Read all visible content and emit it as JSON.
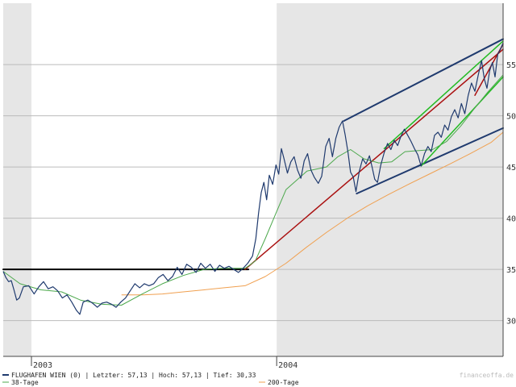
{
  "colors": {
    "price": "#1f3a6e",
    "ma38": "#4ca84c",
    "ma200": "#f0a050",
    "channel_dark": "#1f3a6e",
    "channel_green": "#22bb22",
    "trend_red": "#aa1111",
    "support": "#000000",
    "year_shade": "#e6e6e6",
    "grid": "#bbbbbb"
  },
  "legend": {
    "main": "FLUGHAFEN WIEN (0) | Letzter: 57,13 | Hoch: 57,13 | Tief: 30,33",
    "ma38": "38-Tage",
    "ma200": "200-Tage"
  },
  "watermark": "financeoffa.de",
  "chart_data": {
    "type": "line",
    "title": "",
    "xlabel": "",
    "ylabel": "",
    "x_axis_labels": [
      "2003",
      "2004"
    ],
    "y_ticks": [
      30,
      35,
      40,
      45,
      50,
      55
    ],
    "ylim": [
      26.5,
      61
    ],
    "grid": "horizontal",
    "legend_position": "bottom",
    "series": [
      {
        "name": "FLUGHAFEN WIEN",
        "points": [
          [
            "2002-11-20",
            34.8
          ],
          [
            "2002-11-24",
            34.2
          ],
          [
            "2002-11-28",
            33.8
          ],
          [
            "2002-12-02",
            33.9
          ],
          [
            "2002-12-06",
            33.0
          ],
          [
            "2002-12-10",
            32.0
          ],
          [
            "2002-12-14",
            32.2
          ],
          [
            "2002-12-20",
            33.3
          ],
          [
            "2002-12-28",
            33.4
          ],
          [
            "2003-01-05",
            32.6
          ],
          [
            "2003-01-12",
            33.3
          ],
          [
            "2003-01-19",
            33.8
          ],
          [
            "2003-01-26",
            33.1
          ],
          [
            "2003-02-02",
            33.3
          ],
          [
            "2003-02-09",
            32.9
          ],
          [
            "2003-02-16",
            32.2
          ],
          [
            "2003-02-23",
            32.5
          ],
          [
            "2003-03-02",
            31.8
          ],
          [
            "2003-03-09",
            31.0
          ],
          [
            "2003-03-14",
            30.6
          ],
          [
            "2003-03-19",
            31.8
          ],
          [
            "2003-03-26",
            32.0
          ],
          [
            "2003-04-02",
            31.7
          ],
          [
            "2003-04-09",
            31.3
          ],
          [
            "2003-04-16",
            31.7
          ],
          [
            "2003-04-23",
            31.8
          ],
          [
            "2003-04-30",
            31.6
          ],
          [
            "2003-05-07",
            31.3
          ],
          [
            "2003-05-14",
            31.8
          ],
          [
            "2003-05-21",
            32.2
          ],
          [
            "2003-05-28",
            32.9
          ],
          [
            "2003-06-04",
            33.6
          ],
          [
            "2003-06-11",
            33.2
          ],
          [
            "2003-06-18",
            33.6
          ],
          [
            "2003-06-25",
            33.4
          ],
          [
            "2003-07-02",
            33.6
          ],
          [
            "2003-07-09",
            34.2
          ],
          [
            "2003-07-16",
            34.5
          ],
          [
            "2003-07-23",
            33.9
          ],
          [
            "2003-07-30",
            34.3
          ],
          [
            "2003-08-06",
            35.2
          ],
          [
            "2003-08-13",
            34.5
          ],
          [
            "2003-08-20",
            35.5
          ],
          [
            "2003-08-27",
            35.2
          ],
          [
            "2003-09-03",
            34.7
          ],
          [
            "2003-09-10",
            35.6
          ],
          [
            "2003-09-17",
            35.1
          ],
          [
            "2003-09-24",
            35.5
          ],
          [
            "2003-10-01",
            34.8
          ],
          [
            "2003-10-08",
            35.4
          ],
          [
            "2003-10-15",
            35.1
          ],
          [
            "2003-10-22",
            35.3
          ],
          [
            "2003-10-29",
            35.0
          ],
          [
            "2003-11-05",
            34.7
          ],
          [
            "2003-11-12",
            35.1
          ],
          [
            "2003-11-19",
            35.6
          ],
          [
            "2003-11-26",
            36.3
          ],
          [
            "2003-12-01",
            38.0
          ],
          [
            "2003-12-05",
            40.5
          ],
          [
            "2003-12-09",
            42.5
          ],
          [
            "2003-12-13",
            43.5
          ],
          [
            "2003-12-17",
            41.8
          ],
          [
            "2003-12-21",
            44.2
          ],
          [
            "2003-12-26",
            43.3
          ],
          [
            "2003-12-31",
            45.2
          ],
          [
            "2004-01-04",
            44.3
          ],
          [
            "2004-01-08",
            46.8
          ],
          [
            "2004-01-12",
            45.8
          ],
          [
            "2004-01-17",
            44.4
          ],
          [
            "2004-01-22",
            45.5
          ],
          [
            "2004-01-27",
            46.0
          ],
          [
            "2004-02-01",
            44.7
          ],
          [
            "2004-02-06",
            43.9
          ],
          [
            "2004-02-11",
            45.6
          ],
          [
            "2004-02-16",
            46.3
          ],
          [
            "2004-02-21",
            44.7
          ],
          [
            "2004-02-26",
            44.0
          ],
          [
            "2004-03-03",
            43.4
          ],
          [
            "2004-03-08",
            44.1
          ],
          [
            "2004-03-14",
            47.0
          ],
          [
            "2004-03-19",
            47.8
          ],
          [
            "2004-03-24",
            46.0
          ],
          [
            "2004-03-29",
            47.8
          ],
          [
            "2004-04-03",
            48.9
          ],
          [
            "2004-04-08",
            49.5
          ],
          [
            "2004-04-12",
            48.1
          ],
          [
            "2004-04-16",
            46.5
          ],
          [
            "2004-04-20",
            44.5
          ],
          [
            "2004-04-24",
            44.0
          ],
          [
            "2004-04-28",
            42.6
          ],
          [
            "2004-05-03",
            44.6
          ],
          [
            "2004-05-08",
            45.8
          ],
          [
            "2004-05-13",
            45.3
          ],
          [
            "2004-05-18",
            46.1
          ],
          [
            "2004-05-22",
            45.0
          ],
          [
            "2004-05-26",
            43.8
          ],
          [
            "2004-05-30",
            43.5
          ],
          [
            "2004-06-04",
            45.2
          ],
          [
            "2004-06-09",
            46.4
          ],
          [
            "2004-06-14",
            47.3
          ],
          [
            "2004-06-19",
            46.7
          ],
          [
            "2004-06-24",
            47.6
          ],
          [
            "2004-06-29",
            47.1
          ],
          [
            "2004-07-04",
            48.0
          ],
          [
            "2004-07-09",
            48.7
          ],
          [
            "2004-07-14",
            48.1
          ],
          [
            "2004-07-19",
            47.5
          ],
          [
            "2004-07-24",
            46.8
          ],
          [
            "2004-07-29",
            46.2
          ],
          [
            "2004-08-03",
            45.1
          ],
          [
            "2004-08-08",
            46.3
          ],
          [
            "2004-08-13",
            47.0
          ],
          [
            "2004-08-18",
            46.5
          ],
          [
            "2004-08-23",
            48.1
          ],
          [
            "2004-08-28",
            48.4
          ],
          [
            "2004-09-02",
            47.9
          ],
          [
            "2004-09-07",
            49.1
          ],
          [
            "2004-09-12",
            48.6
          ],
          [
            "2004-09-17",
            49.9
          ],
          [
            "2004-09-22",
            50.6
          ],
          [
            "2004-09-27",
            49.8
          ],
          [
            "2004-10-02",
            51.2
          ],
          [
            "2004-10-07",
            50.2
          ],
          [
            "2004-10-12",
            52.0
          ],
          [
            "2004-10-17",
            53.2
          ],
          [
            "2004-10-22",
            52.4
          ],
          [
            "2004-10-27",
            54.0
          ],
          [
            "2004-11-01",
            55.4
          ],
          [
            "2004-11-05",
            53.6
          ],
          [
            "2004-11-09",
            52.7
          ],
          [
            "2004-11-13",
            54.4
          ],
          [
            "2004-11-17",
            55.2
          ],
          [
            "2004-11-21",
            53.8
          ],
          [
            "2004-11-25",
            56.0
          ],
          [
            "2004-11-29",
            56.5
          ],
          [
            "2004-12-03",
            57.13
          ]
        ]
      },
      {
        "name": "38-Tage",
        "points": [
          [
            "2002-11-20",
            34.8
          ],
          [
            "2002-12-15",
            33.6
          ],
          [
            "2003-01-15",
            33.0
          ],
          [
            "2003-02-15",
            32.8
          ],
          [
            "2003-03-15",
            32.0
          ],
          [
            "2003-04-15",
            31.6
          ],
          [
            "2003-05-15",
            31.5
          ],
          [
            "2003-06-15",
            32.6
          ],
          [
            "2003-07-15",
            33.6
          ],
          [
            "2003-08-15",
            34.4
          ],
          [
            "2003-09-15",
            35.0
          ],
          [
            "2003-10-15",
            35.1
          ],
          [
            "2003-11-15",
            35.1
          ],
          [
            "2003-11-30",
            35.8
          ],
          [
            "2003-12-15",
            38.0
          ],
          [
            "2003-12-31",
            40.5
          ],
          [
            "2004-01-15",
            42.8
          ],
          [
            "2004-02-15",
            44.6
          ],
          [
            "2004-03-15",
            45.0
          ],
          [
            "2004-04-01",
            46.0
          ],
          [
            "2004-04-20",
            46.7
          ],
          [
            "2004-05-10",
            45.8
          ],
          [
            "2004-06-01",
            45.4
          ],
          [
            "2004-06-20",
            45.5
          ],
          [
            "2004-07-10",
            46.5
          ],
          [
            "2004-07-31",
            46.6
          ],
          [
            "2004-08-20",
            46.7
          ],
          [
            "2004-09-10",
            47.5
          ],
          [
            "2004-10-01",
            49.0
          ],
          [
            "2004-10-20",
            50.6
          ],
          [
            "2004-11-10",
            52.3
          ],
          [
            "2004-12-03",
            54.0
          ]
        ]
      },
      {
        "name": "200-Tage",
        "points": [
          [
            "2003-05-15",
            32.5
          ],
          [
            "2003-06-15",
            32.5
          ],
          [
            "2003-07-15",
            32.6
          ],
          [
            "2003-08-15",
            32.8
          ],
          [
            "2003-09-15",
            33.0
          ],
          [
            "2003-10-15",
            33.2
          ],
          [
            "2003-11-15",
            33.4
          ],
          [
            "2003-12-15",
            34.3
          ],
          [
            "2004-01-15",
            35.6
          ],
          [
            "2004-02-15",
            37.2
          ],
          [
            "2004-03-15",
            38.6
          ],
          [
            "2004-04-15",
            40.0
          ],
          [
            "2004-05-15",
            41.2
          ],
          [
            "2004-06-15",
            42.3
          ],
          [
            "2004-07-15",
            43.3
          ],
          [
            "2004-08-15",
            44.3
          ],
          [
            "2004-09-15",
            45.3
          ],
          [
            "2004-10-15",
            46.3
          ],
          [
            "2004-11-15",
            47.4
          ],
          [
            "2004-12-03",
            48.4
          ]
        ]
      }
    ],
    "trendlines": [
      {
        "kind": "support",
        "color_key": "support",
        "width": 2,
        "from": [
          "2002-11-20",
          35.0
        ],
        "to": [
          "2003-11-20",
          35.0
        ]
      },
      {
        "kind": "trend",
        "color_key": "trend_red",
        "width": 1.5,
        "from": [
          "2003-11-15",
          35.0
        ],
        "to": [
          "2004-12-03",
          56.5
        ]
      },
      {
        "kind": "trend",
        "color_key": "trend_red",
        "width": 1.5,
        "from": [
          "2004-10-22",
          52.0
        ],
        "to": [
          "2004-12-03",
          57.0
        ]
      },
      {
        "kind": "channel-upper",
        "color_key": "channel_dark",
        "width": 2,
        "from": [
          "2004-04-10",
          49.5
        ],
        "to": [
          "2004-12-03",
          57.5
        ]
      },
      {
        "kind": "channel-lower",
        "color_key": "channel_dark",
        "width": 2,
        "from": [
          "2004-04-29",
          42.4
        ],
        "to": [
          "2004-12-03",
          48.8
        ]
      },
      {
        "kind": "channel-upper",
        "color_key": "channel_green",
        "width": 1.5,
        "from": [
          "2004-06-09",
          46.8
        ],
        "to": [
          "2004-12-03",
          57.3
        ]
      },
      {
        "kind": "channel-lower",
        "color_key": "channel_green",
        "width": 1.5,
        "from": [
          "2004-08-03",
          45.1
        ],
        "to": [
          "2004-12-03",
          53.8
        ]
      }
    ]
  }
}
